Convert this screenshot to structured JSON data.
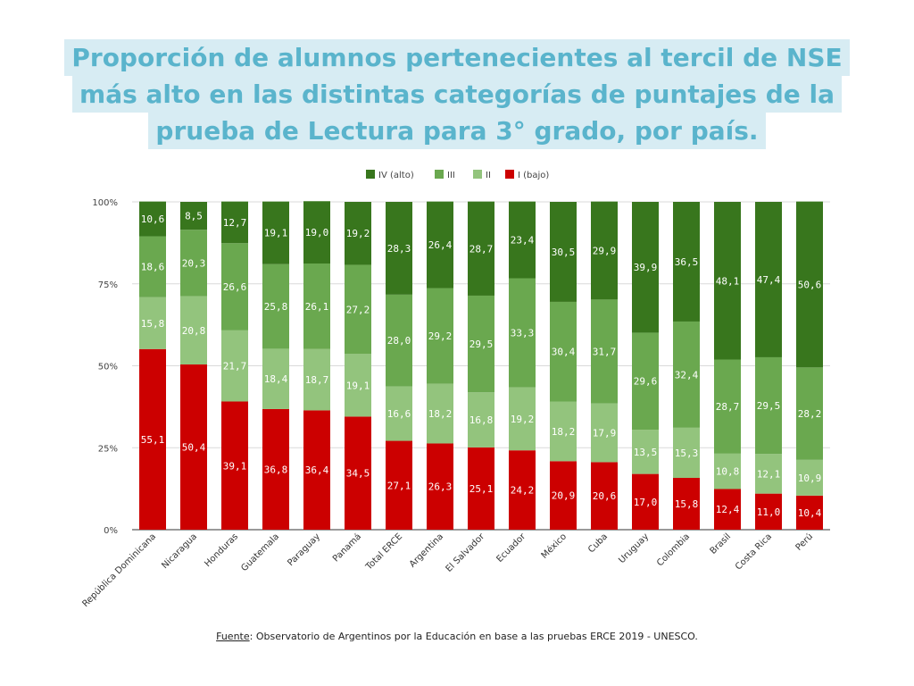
{
  "title": {
    "lines": [
      "Proporción de alumnos pertenecientes al tercil de NSE",
      "más alto en las distintas categorías de puntajes de la",
      "prueba de Lectura para 3° grado, por país."
    ],
    "color": "#5ab4cc",
    "background": "#d7ecf3"
  },
  "source": {
    "label": "Fuente",
    "text": ": Observatorio de Argentinos por la Educación en base a las pruebas ERCE 2019 - UNESCO."
  },
  "chart_data": {
    "type": "bar",
    "stacked": true,
    "percent": true,
    "categories": [
      "República Dominicana",
      "Nicaragua",
      "Honduras",
      "Guatemala",
      "Paraguay",
      "Panamá",
      "Total ERCE",
      "Argentina",
      "El Salvador",
      "Ecuador",
      "México",
      "Cuba",
      "Uruguay",
      "Colombia",
      "Brasil",
      "Costa Rica",
      "Perú"
    ],
    "series": [
      {
        "name": "I (bajo)",
        "color": "#cc0000",
        "values": [
          55.1,
          50.4,
          39.1,
          36.8,
          36.4,
          34.5,
          27.1,
          26.3,
          25.1,
          24.2,
          20.9,
          20.6,
          17.0,
          15.8,
          12.4,
          11.0,
          10.4
        ],
        "labels": [
          "55,1",
          "50,4",
          "39,1",
          "36,8",
          "36,4",
          "34,5",
          "27,1",
          "26,3",
          "25,1",
          "24,2",
          "20,9",
          "20,6",
          "17,0",
          "15,8",
          "12,4",
          "11,0",
          "10,4"
        ]
      },
      {
        "name": "II",
        "color": "#93c47d",
        "values": [
          15.8,
          20.8,
          21.7,
          18.4,
          18.7,
          19.1,
          16.6,
          18.2,
          16.8,
          19.2,
          18.2,
          17.9,
          13.5,
          15.3,
          10.8,
          12.1,
          10.9
        ],
        "labels": [
          "15,8",
          "20,8",
          "21,7",
          "18,4",
          "18,7",
          "19,1",
          "16,6",
          "18,2",
          "16,8",
          "19,2",
          "18,2",
          "17,9",
          "13,5",
          "15,3",
          "10,8",
          "12,1",
          "10,9"
        ]
      },
      {
        "name": "III",
        "color": "#6aa84f",
        "values": [
          18.6,
          20.3,
          26.6,
          25.8,
          26.1,
          27.2,
          28.0,
          29.2,
          29.5,
          33.3,
          30.4,
          31.7,
          29.6,
          32.4,
          28.7,
          29.5,
          28.2
        ],
        "labels": [
          "18,6",
          "20,3",
          "26,6",
          "25,8",
          "26,1",
          "27,2",
          "28,0",
          "29,2",
          "29,5",
          "33,3",
          "30,4",
          "31,7",
          "29,6",
          "32,4",
          "28,7",
          "29,5",
          "28,2"
        ]
      },
      {
        "name": "IV (alto)",
        "color": "#38761d",
        "values": [
          10.6,
          8.5,
          12.7,
          19.1,
          19.0,
          19.2,
          28.3,
          26.4,
          28.7,
          23.4,
          30.5,
          29.9,
          39.9,
          36.5,
          48.1,
          47.4,
          50.6
        ],
        "labels": [
          "10,6",
          "8,5",
          "12,7",
          "19,1",
          "19,0",
          "19,2",
          "28,3",
          "26,4",
          "28,7",
          "23,4",
          "30,5",
          "29,9",
          "39,9",
          "36,5",
          "48,1",
          "47,4",
          "50,6"
        ]
      }
    ],
    "legend_order": [
      "IV (alto)",
      "III",
      "II",
      "I (bajo)"
    ],
    "legend_position": "top",
    "ylim": [
      0,
      100
    ],
    "yticks": [
      "0%",
      "25%",
      "50%",
      "75%",
      "100%"
    ],
    "grid": true
  }
}
